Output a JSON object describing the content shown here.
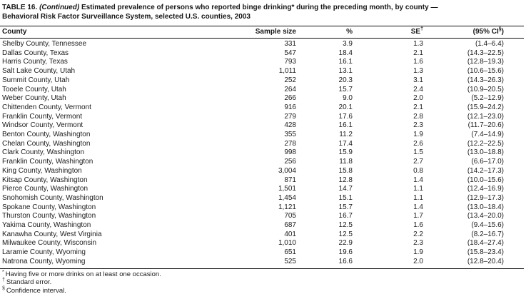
{
  "title": {
    "line1_label": "TABLE 16.",
    "line1_continued": "(Continued)",
    "line1_rest": "Estimated prevalence of persons who reported binge drinking* during the preceding month, by county —",
    "line2": "Behavioral Risk Factor Surveillance System, selected U.S. counties, 2003"
  },
  "table": {
    "columns": {
      "county": "County",
      "sample_size": "Sample size",
      "percent": "%",
      "se": "SE",
      "se_sup": "†",
      "ci_prefix": "(95% CI",
      "ci_sup": "§",
      "ci_suffix": ")"
    },
    "rows": [
      [
        "Shelby County, Tennessee",
        "331",
        "3.9",
        "1.3",
        "(1.4–6.4)"
      ],
      [
        "Dallas County, Texas",
        "547",
        "18.4",
        "2.1",
        "(14.3–22.5)"
      ],
      [
        "Harris County, Texas",
        "793",
        "16.1",
        "1.6",
        "(12.8–19.3)"
      ],
      [
        "Salt Lake County, Utah",
        "1,011",
        "13.1",
        "1.3",
        "(10.6–15.6)"
      ],
      [
        "Summit County, Utah",
        "252",
        "20.3",
        "3.1",
        "(14.3–26.3)"
      ],
      [
        "Tooele County, Utah",
        "264",
        "15.7",
        "2.4",
        "(10.9–20.5)"
      ],
      [
        "Weber County, Utah",
        "266",
        "9.0",
        "2.0",
        "(5.2–12.9)"
      ],
      [
        "Chittenden County, Vermont",
        "916",
        "20.1",
        "2.1",
        "(15.9–24.2)"
      ],
      [
        "Franklin County, Vermont",
        "279",
        "17.6",
        "2.8",
        "(12.1–23.0)"
      ],
      [
        "Windsor County, Vermont",
        "428",
        "16.1",
        "2.3",
        "(11.7–20.6)"
      ],
      [
        "Benton County, Washington",
        "355",
        "11.2",
        "1.9",
        "(7.4–14.9)"
      ],
      [
        "Chelan County, Washington",
        "278",
        "17.4",
        "2.6",
        "(12.2–22.5)"
      ],
      [
        "Clark County, Washington",
        "998",
        "15.9",
        "1.5",
        "(13.0–18.8)"
      ],
      [
        "Franklin County, Washington",
        "256",
        "11.8",
        "2.7",
        "(6.6–17.0)"
      ],
      [
        "King County, Washington",
        "3,004",
        "15.8",
        "0.8",
        "(14.2–17.3)"
      ],
      [
        "Kitsap County, Washington",
        "871",
        "12.8",
        "1.4",
        "(10.0–15.6)"
      ],
      [
        "Pierce County, Washington",
        "1,501",
        "14.7",
        "1.1",
        "(12.4–16.9)"
      ],
      [
        "Snohomish County, Washington",
        "1,454",
        "15.1",
        "1.1",
        "(12.9–17.3)"
      ],
      [
        "Spokane County, Washington",
        "1,121",
        "15.7",
        "1.4",
        "(13.0–18.4)"
      ],
      [
        "Thurston County, Washington",
        "705",
        "16.7",
        "1.7",
        "(13.4–20.0)"
      ],
      [
        "Yakima County, Washington",
        "687",
        "12.5",
        "1.6",
        "(9.4–15.6)"
      ],
      [
        "Kanawha County, West Virginia",
        "401",
        "12.5",
        "2.2",
        "(8.2–16.7)"
      ],
      [
        "Milwaukee County, Wisconsin",
        "1,010",
        "22.9",
        "2.3",
        "(18.4–27.4)"
      ],
      [
        "Laramie County, Wyoming",
        "651",
        "19.6",
        "1.9",
        "(15.8–23.4)"
      ],
      [
        "Natrona County, Wyoming",
        "525",
        "16.6",
        "2.0",
        "(12.8–20.4)"
      ]
    ]
  },
  "footnotes": [
    {
      "marker": "*",
      "text": "Having five or more drinks on at least one occasion."
    },
    {
      "marker": "†",
      "text": "Standard error."
    },
    {
      "marker": "§",
      "text": "Confidence interval."
    }
  ],
  "colors": {
    "text": "#1b1b1b",
    "rule": "#111111",
    "background": "#ffffff"
  }
}
